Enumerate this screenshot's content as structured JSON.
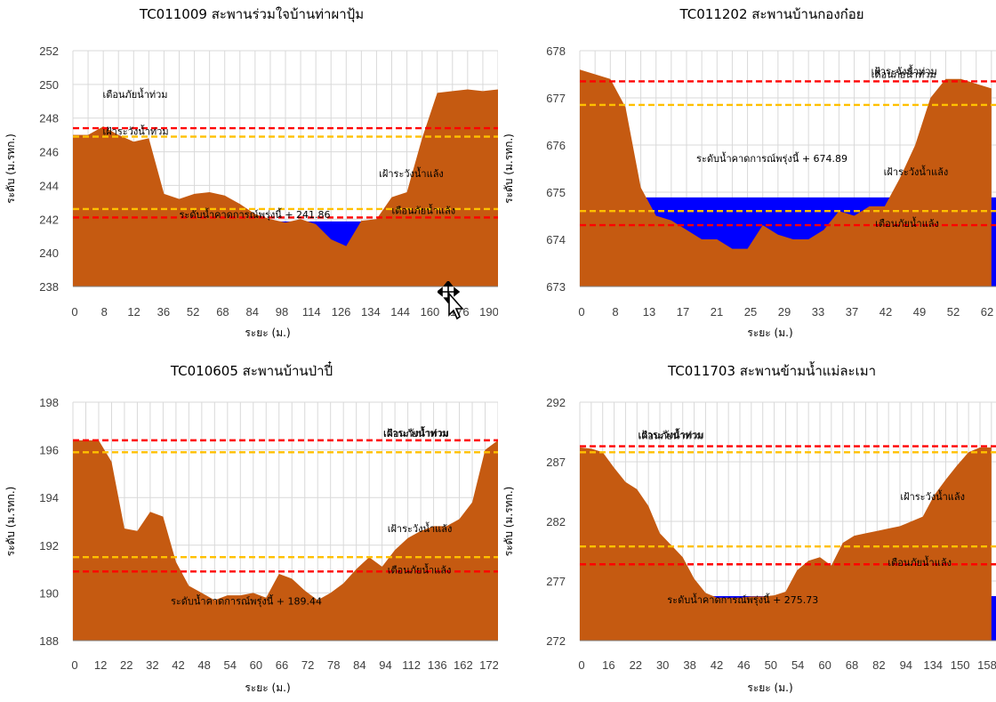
{
  "chart_data": [
    {
      "type": "area",
      "title": "TC011009 สะพานร่วมใจบ้านท่าผาปุ้ม",
      "xlabel": "ระยะ (ม.)",
      "ylabel": "ระดับ (ม.รทก.)",
      "ylim": [
        238,
        252
      ],
      "yticks": [
        238,
        240,
        242,
        244,
        246,
        248,
        250,
        252
      ],
      "xticks": [
        "0",
        "8",
        "12",
        "36",
        "52",
        "68",
        "84",
        "98",
        "114",
        "126",
        "134",
        "144",
        "160",
        "176",
        "190"
      ],
      "grid": true,
      "series": [
        {
          "role": "ground",
          "color": "#c55a11",
          "x": [
            0,
            1,
            2,
            3,
            4,
            5,
            6,
            7,
            8,
            9,
            10,
            11,
            12,
            13,
            14,
            15,
            16,
            17,
            18,
            19,
            20,
            21,
            22,
            23,
            24,
            25,
            26,
            27,
            28
          ],
          "y": [
            247.0,
            247.0,
            247.5,
            247.0,
            246.6,
            246.8,
            243.5,
            243.2,
            243.5,
            243.6,
            243.4,
            242.9,
            242.3,
            242.0,
            241.8,
            242.0,
            241.7,
            240.8,
            240.4,
            241.9,
            242.0,
            243.3,
            243.6,
            246.8,
            249.5,
            249.6,
            249.7,
            249.6,
            249.7
          ]
        },
        {
          "role": "water",
          "color": "#0000ff",
          "level": 241.86
        }
      ],
      "reference_lines": [
        {
          "label": "เตือนภัยน้ำท่วม",
          "value": 247.4,
          "color": "#ff0000"
        },
        {
          "label": "เฝ้าระวังน้ำท่วม",
          "value": 246.9,
          "color": "#ffc000"
        },
        {
          "label": "เฝ้าระวังน้ำแล้ง",
          "value": 242.6,
          "color": "#ffc000"
        },
        {
          "label": "เตือนภัยน้ำแล้ง",
          "value": 242.1,
          "color": "#ff0000"
        }
      ],
      "forecast_label": "ระดับน้ำคาดการณ์พรุ่งนี้ + 241.86"
    },
    {
      "type": "area",
      "title": "TC011202 สะพานบ้านกองก๋อย",
      "xlabel": "ระยะ (ม.)",
      "ylabel": "ระดับ (ม.รทก.)",
      "ylim": [
        673,
        678
      ],
      "yticks": [
        673,
        674,
        675,
        676,
        677,
        678
      ],
      "xticks": [
        "0",
        "8",
        "13",
        "17",
        "21",
        "25",
        "29",
        "33",
        "37",
        "42",
        "49",
        "52",
        "62"
      ],
      "grid": true,
      "series": [
        {
          "role": "ground",
          "color": "#c55a11",
          "x": [
            0,
            1,
            2,
            3,
            4,
            5,
            6,
            7,
            8,
            9,
            10,
            11,
            12,
            13,
            14,
            15,
            16,
            17,
            18,
            19,
            20,
            21,
            22,
            23,
            24,
            25,
            26,
            27
          ],
          "y": [
            677.6,
            677.5,
            677.4,
            676.8,
            675.1,
            674.5,
            674.4,
            674.2,
            674.0,
            674.0,
            673.8,
            673.8,
            674.3,
            674.1,
            674.0,
            674.0,
            674.2,
            674.6,
            674.5,
            674.7,
            674.7,
            675.3,
            676.0,
            677.0,
            677.4,
            677.4,
            677.3,
            677.2
          ]
        },
        {
          "role": "water",
          "color": "#0000ff",
          "level": 674.89
        }
      ],
      "reference_lines": [
        {
          "label": "เตือนภัยน้ำท่วม",
          "value": 677.35,
          "color": "#ff0000"
        },
        {
          "label": "เฝ้าระวังน้ำท่วม",
          "value": 676.85,
          "color": "#ffc000"
        },
        {
          "label": "เฝ้าระวังน้ำแล้ง",
          "value": 674.6,
          "color": "#ffc000"
        },
        {
          "label": "เตือนภัยน้ำแล้ง",
          "value": 674.3,
          "color": "#ff0000"
        }
      ],
      "forecast_label": "ระดับน้ำคาดการณ์พรุ่งนี้ + 674.89"
    },
    {
      "type": "area",
      "title": "TC010605 สะพานบ้านป่าปี๋",
      "xlabel": "ระยะ (ม.)",
      "ylabel": "ระดับ (ม.รทก.)",
      "ylim": [
        188,
        198
      ],
      "yticks": [
        188,
        190,
        192,
        194,
        196,
        198
      ],
      "xticks": [
        "0",
        "12",
        "22",
        "32",
        "42",
        "48",
        "54",
        "60",
        "66",
        "72",
        "78",
        "84",
        "94",
        "112",
        "136",
        "162",
        "172"
      ],
      "grid": true,
      "series": [
        {
          "role": "ground",
          "color": "#c55a11",
          "x": [
            0,
            1,
            2,
            3,
            4,
            5,
            6,
            7,
            8,
            9,
            10,
            11,
            12,
            13,
            14,
            15,
            16,
            17,
            18,
            19,
            20,
            21,
            22,
            23,
            24,
            25,
            26,
            27,
            28,
            29,
            30,
            31,
            32,
            33
          ],
          "y": [
            196.4,
            196.4,
            196.4,
            195.5,
            192.7,
            192.6,
            193.4,
            193.2,
            191.3,
            190.3,
            190.0,
            189.7,
            189.9,
            189.9,
            190.0,
            189.8,
            190.8,
            190.6,
            190.1,
            189.7,
            190.0,
            190.4,
            191.0,
            191.5,
            191.1,
            191.8,
            192.3,
            192.6,
            192.8,
            192.8,
            193.1,
            193.8,
            196.0,
            196.4
          ]
        },
        {
          "role": "water",
          "color": "#0000ff",
          "level": 189.44
        }
      ],
      "reference_lines": [
        {
          "label": "เตือนภัยน้ำท่วม",
          "value": 196.4,
          "color": "#ff0000"
        },
        {
          "label": "เฝ้าระวังน้ำท่วม",
          "value": 195.9,
          "color": "#ffc000"
        },
        {
          "label": "เฝ้าระวังน้ำแล้ง",
          "value": 191.5,
          "color": "#ffc000"
        },
        {
          "label": "เตือนภัยน้ำแล้ง",
          "value": 190.9,
          "color": "#ff0000"
        }
      ],
      "forecast_label": "ระดับน้ำคาดการณ์พรุ่งนี้ + 189.44"
    },
    {
      "type": "area",
      "title": "TC011703 สะพานข้ามน้ำแม่ละเมา",
      "xlabel": "ระยะ (ม.)",
      "ylabel": "ระดับ (ม.รทก.)",
      "ylim": [
        272,
        292
      ],
      "yticks": [
        272,
        277,
        282,
        287,
        292
      ],
      "xticks": [
        "0",
        "16",
        "22",
        "30",
        "38",
        "42",
        "46",
        "50",
        "54",
        "60",
        "68",
        "82",
        "94",
        "134",
        "150",
        "158"
      ],
      "grid": true,
      "series": [
        {
          "role": "ground",
          "color": "#c55a11",
          "x": [
            0,
            1,
            2,
            3,
            4,
            5,
            6,
            7,
            8,
            9,
            10,
            11,
            12,
            13,
            14,
            15,
            16,
            17,
            18,
            19,
            20,
            21,
            22,
            23,
            24,
            25,
            26,
            27,
            28,
            29,
            30,
            31,
            32,
            33,
            34,
            35,
            36
          ],
          "y": [
            288.2,
            288.1,
            287.8,
            286.5,
            285.3,
            284.7,
            283.3,
            281.0,
            280.0,
            279.0,
            277.2,
            276.0,
            275.6,
            275.6,
            275.6,
            275.7,
            275.7,
            275.8,
            276.1,
            277.9,
            278.7,
            279.0,
            278.3,
            280.2,
            280.8,
            281.0,
            281.2,
            281.4,
            281.6,
            282.0,
            282.4,
            284.2,
            285.5,
            286.7,
            287.8,
            288.2,
            288.2
          ]
        },
        {
          "role": "water",
          "color": "#0000ff",
          "level": 275.73
        }
      ],
      "reference_lines": [
        {
          "label": "เตือนภัยน้ำท่วม",
          "value": 288.3,
          "color": "#ff0000"
        },
        {
          "label": "เฝ้าระวังน้ำท่วม",
          "value": 287.8,
          "color": "#ffc000"
        },
        {
          "label": "เฝ้าระวังน้ำแล้ง",
          "value": 279.9,
          "color": "#ffc000"
        },
        {
          "label": "เตือนภัยน้ำแล้ง",
          "value": 278.4,
          "color": "#ff0000"
        }
      ],
      "forecast_label": "ระดับน้ำคาดการณ์พรุ่งนี้ + 275.73"
    }
  ],
  "ui": {
    "cursor_icon": "move-cursor-icon"
  }
}
